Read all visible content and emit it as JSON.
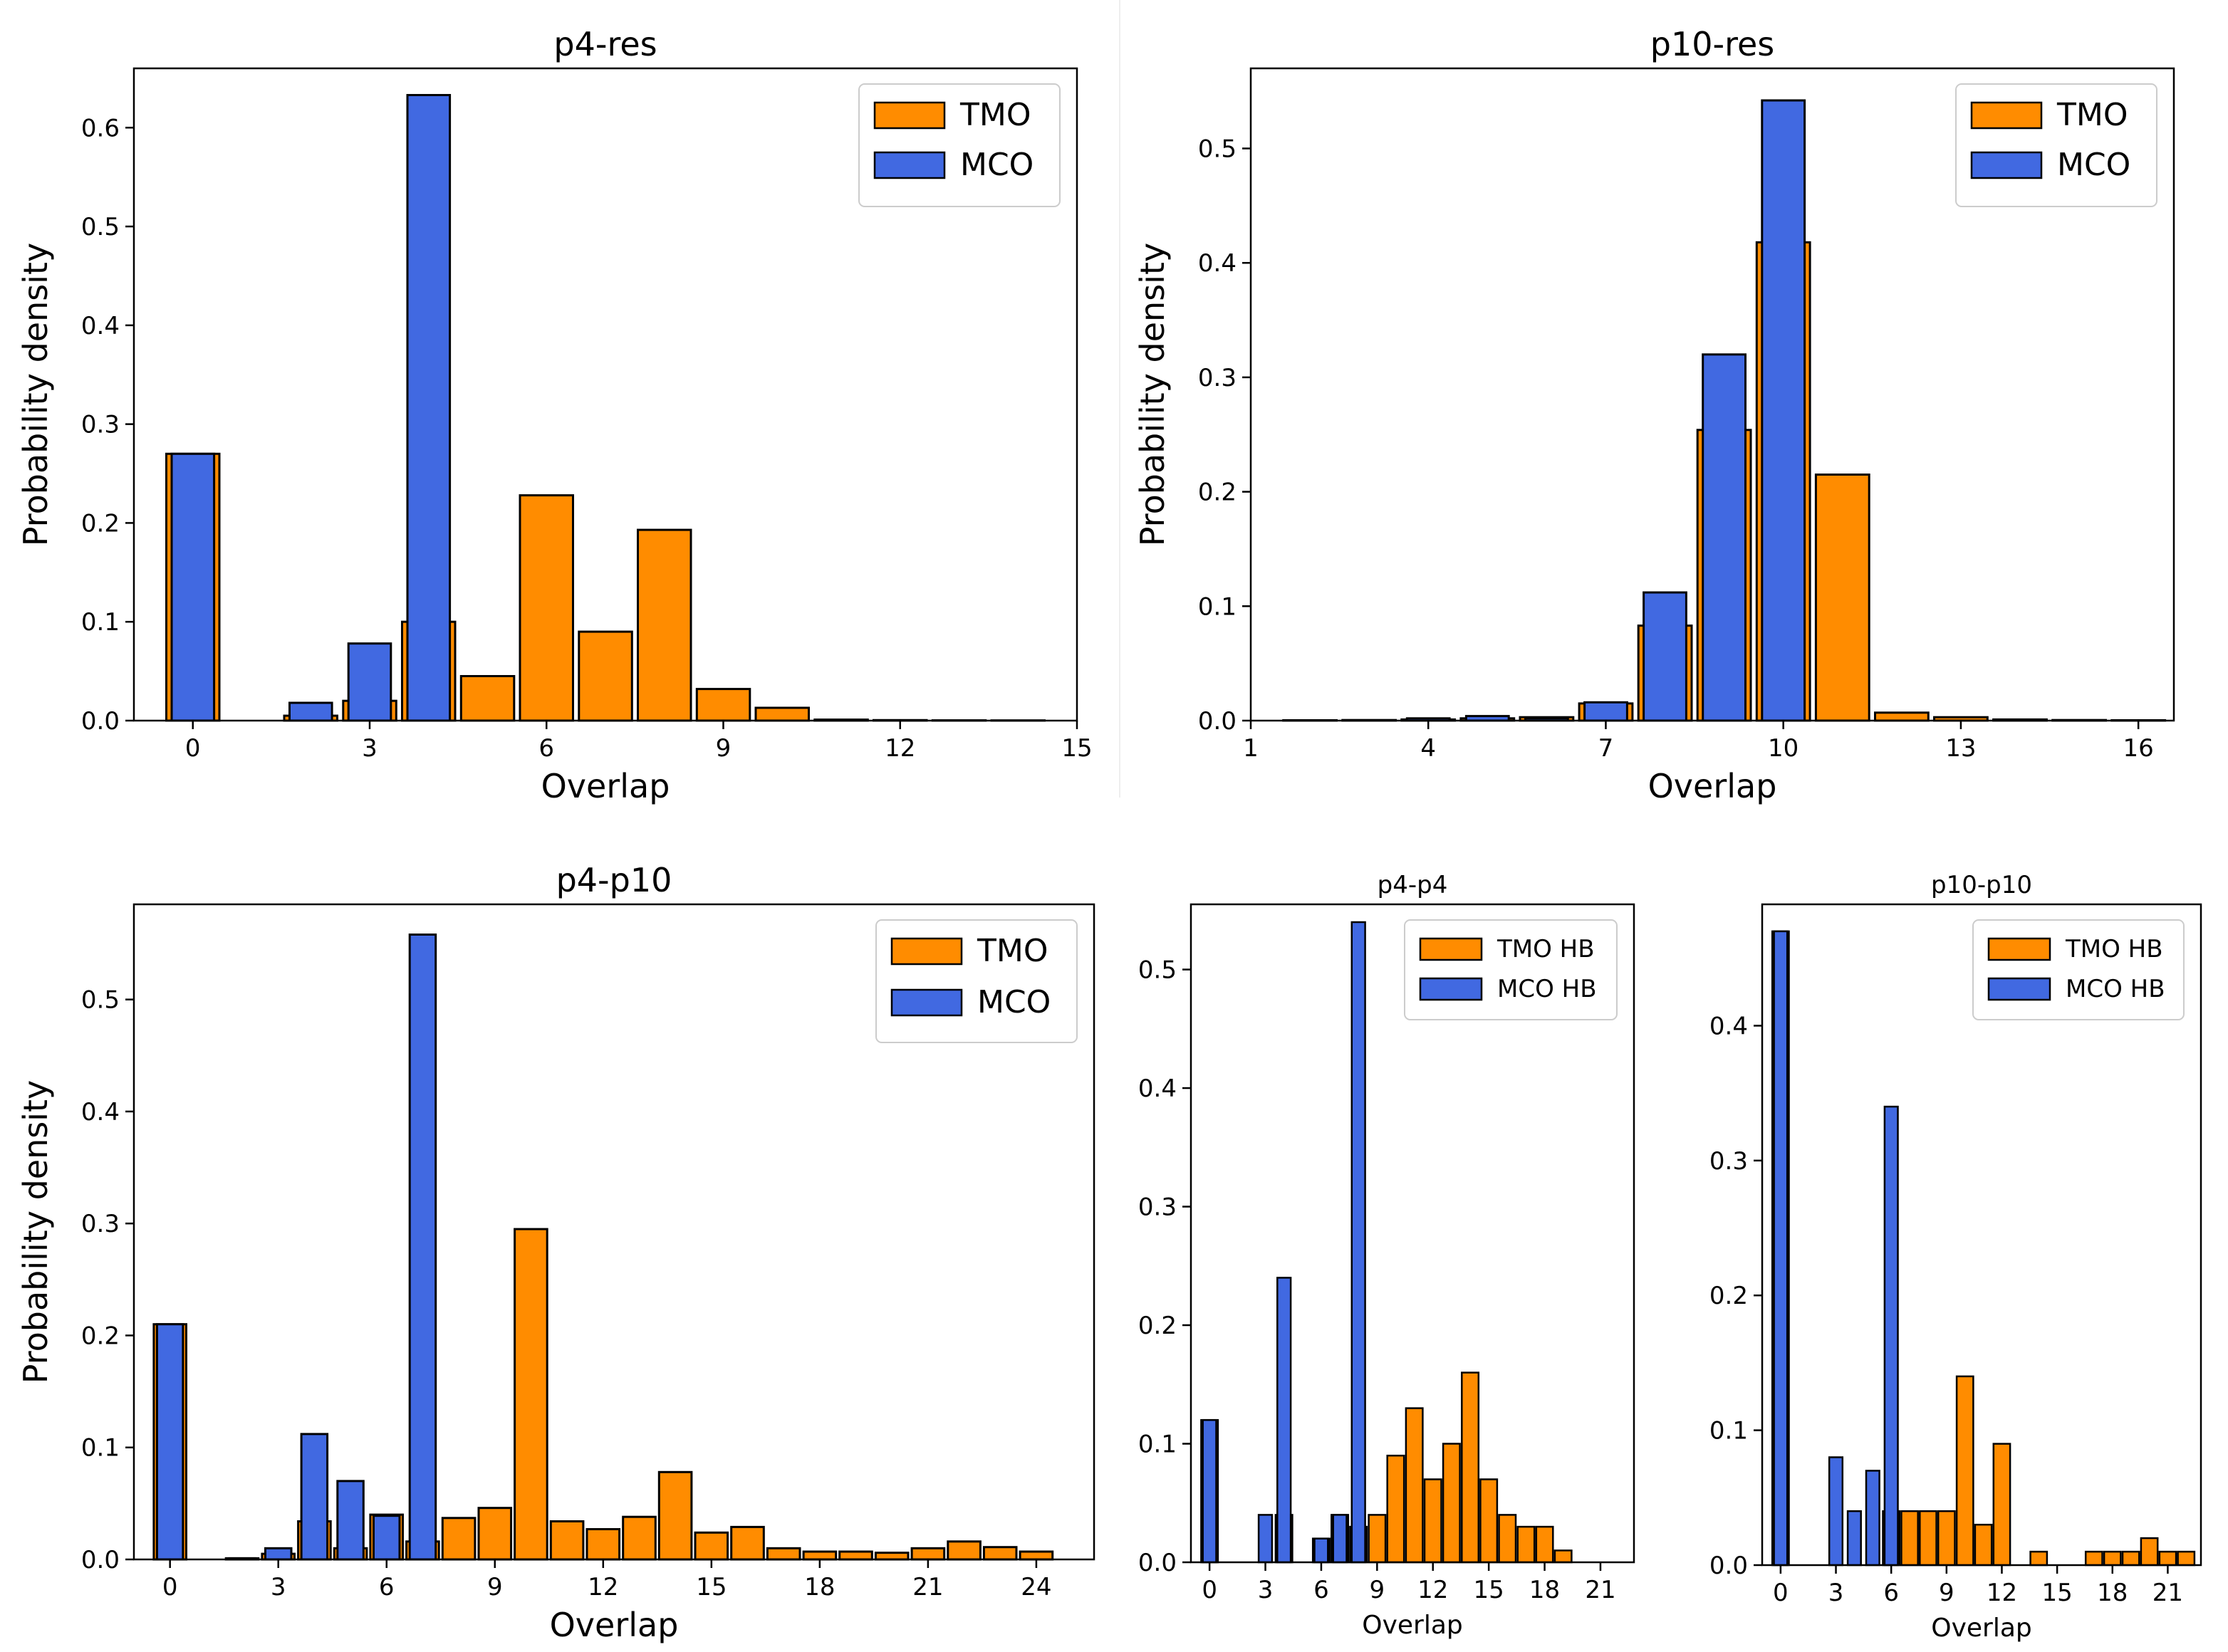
{
  "figure_title": "",
  "colors": {
    "tmo": "#ff8c00",
    "mco": "#4169e1",
    "edge": "#000000",
    "legend_edge": "#cccccc"
  },
  "chart_data": [
    {
      "id": "p4-res",
      "type": "bar",
      "title": "p4-res",
      "xlabel": "Overlap",
      "ylabel": "Probability density",
      "xlim": [
        -1,
        15
      ],
      "ylim": [
        0,
        0.66
      ],
      "xticks": [
        0,
        3,
        6,
        9,
        12,
        15
      ],
      "yticks": [
        0.0,
        0.1,
        0.2,
        0.3,
        0.4,
        0.5,
        0.6
      ],
      "ytick_labels": [
        "0.0",
        "0.1",
        "0.2",
        "0.3",
        "0.4",
        "0.5",
        "0.6"
      ],
      "bar_width": 0.9,
      "legend_position": "top-right",
      "series": [
        {
          "name": "TMO",
          "color": "#ff8c00",
          "x": [
            0,
            1,
            2,
            3,
            4,
            5,
            6,
            7,
            8,
            9,
            10,
            11,
            12,
            13,
            14
          ],
          "values": [
            0.27,
            0.0,
            0.005,
            0.02,
            0.1,
            0.045,
            0.228,
            0.09,
            0.193,
            0.032,
            0.013,
            0.001,
            0.0005,
            0.0003,
            0.0002
          ]
        },
        {
          "name": "MCO",
          "color": "#4169e1",
          "x": [
            0,
            1,
            2,
            3,
            4
          ],
          "values": [
            0.27,
            0.0,
            0.018,
            0.078,
            0.633
          ],
          "width": 0.72
        }
      ]
    },
    {
      "id": "p10-res",
      "type": "bar",
      "title": "p10-res",
      "xlabel": "Overlap",
      "ylabel": "Probability density",
      "xlim": [
        1,
        16.6
      ],
      "ylim": [
        0,
        0.57
      ],
      "xticks": [
        1,
        4,
        7,
        10,
        13,
        16
      ],
      "yticks": [
        0.0,
        0.1,
        0.2,
        0.3,
        0.4,
        0.5
      ],
      "ytick_labels": [
        "0.0",
        "0.1",
        "0.2",
        "0.3",
        "0.4",
        "0.5"
      ],
      "bar_width": 0.9,
      "legend_position": "top-right",
      "series": [
        {
          "name": "TMO",
          "color": "#ff8c00",
          "x": [
            2,
            3,
            4,
            5,
            6,
            7,
            8,
            9,
            10,
            11,
            12,
            13,
            14,
            15,
            16
          ],
          "values": [
            0.0003,
            0.0005,
            0.001,
            0.002,
            0.003,
            0.015,
            0.083,
            0.254,
            0.418,
            0.215,
            0.007,
            0.003,
            0.001,
            0.0005,
            0.0003
          ]
        },
        {
          "name": "MCO",
          "color": "#4169e1",
          "x": [
            4,
            5,
            6,
            7,
            8,
            9,
            10
          ],
          "values": [
            0.002,
            0.004,
            0.002,
            0.016,
            0.112,
            0.32,
            0.542
          ],
          "width": 0.72
        }
      ]
    },
    {
      "id": "p4-p10",
      "type": "bar",
      "title": "p4-p10",
      "xlabel": "Overlap",
      "ylabel": "Probability density",
      "xlim": [
        -1,
        25.6
      ],
      "ylim": [
        0,
        0.585
      ],
      "xticks": [
        0,
        3,
        6,
        9,
        12,
        15,
        18,
        21,
        24
      ],
      "yticks": [
        0.0,
        0.1,
        0.2,
        0.3,
        0.4,
        0.5
      ],
      "ytick_labels": [
        "0.0",
        "0.1",
        "0.2",
        "0.3",
        "0.4",
        "0.5"
      ],
      "bar_width": 0.9,
      "legend_position": "top-right",
      "series": [
        {
          "name": "TMO",
          "color": "#ff8c00",
          "x": [
            0,
            1,
            2,
            3,
            4,
            5,
            6,
            7,
            8,
            9,
            10,
            11,
            12,
            13,
            14,
            15,
            16,
            17,
            18,
            19,
            20,
            21,
            22,
            23,
            24
          ],
          "values": [
            0.21,
            0.0,
            0.001,
            0.005,
            0.034,
            0.01,
            0.04,
            0.016,
            0.037,
            0.046,
            0.295,
            0.034,
            0.027,
            0.038,
            0.078,
            0.024,
            0.029,
            0.01,
            0.007,
            0.007,
            0.006,
            0.01,
            0.016,
            0.011,
            0.007
          ]
        },
        {
          "name": "MCO",
          "color": "#4169e1",
          "x": [
            0,
            1,
            2,
            3,
            4,
            5,
            6,
            7
          ],
          "values": [
            0.21,
            0.0,
            0.001,
            0.01,
            0.112,
            0.07,
            0.039,
            0.558
          ],
          "width": 0.72
        }
      ]
    },
    {
      "id": "p4-p4",
      "type": "bar",
      "title": "p4-p4",
      "xlabel": "Overlap",
      "ylabel": "",
      "xlim": [
        -1,
        22.8
      ],
      "ylim": [
        0,
        0.555
      ],
      "xticks": [
        0,
        3,
        6,
        9,
        12,
        15,
        18,
        21
      ],
      "yticks": [
        0.0,
        0.1,
        0.2,
        0.3,
        0.4,
        0.5
      ],
      "ytick_labels": [
        "0.0",
        "0.1",
        "0.2",
        "0.3",
        "0.4",
        "0.5"
      ],
      "bar_width": 0.9,
      "legend_position": "top-right",
      "series": [
        {
          "name": "TMO HB",
          "color": "#ff8c00",
          "x": [
            0,
            4,
            6,
            7,
            8,
            9,
            10,
            11,
            12,
            13,
            14,
            15,
            16,
            17,
            18,
            19
          ],
          "values": [
            0.12,
            0.04,
            0.02,
            0.04,
            0.03,
            0.04,
            0.09,
            0.13,
            0.07,
            0.1,
            0.16,
            0.07,
            0.04,
            0.03,
            0.03,
            0.01
          ]
        },
        {
          "name": "MCO HB",
          "color": "#4169e1",
          "x": [
            0,
            3,
            4,
            6,
            7,
            8
          ],
          "values": [
            0.12,
            0.04,
            0.24,
            0.02,
            0.04,
            0.54
          ],
          "width": 0.72
        }
      ]
    },
    {
      "id": "p10-p10",
      "type": "bar",
      "title": "p10-p10",
      "xlabel": "Overlap",
      "ylabel": "",
      "xlim": [
        -1,
        22.8
      ],
      "ylim": [
        0,
        0.49
      ],
      "xticks": [
        0,
        3,
        6,
        9,
        12,
        15,
        18,
        21
      ],
      "yticks": [
        0.0,
        0.1,
        0.2,
        0.3,
        0.4
      ],
      "ytick_labels": [
        "0.0",
        "0.1",
        "0.2",
        "0.3",
        "0.4"
      ],
      "bar_width": 0.9,
      "legend_position": "top-right",
      "series": [
        {
          "name": "TMO HB",
          "color": "#ff8c00",
          "x": [
            0,
            6,
            7,
            8,
            9,
            10,
            11,
            12,
            14,
            17,
            18,
            19,
            20,
            21,
            22
          ],
          "values": [
            0.47,
            0.04,
            0.04,
            0.04,
            0.04,
            0.14,
            0.03,
            0.09,
            0.01,
            0.01,
            0.01,
            0.01,
            0.02,
            0.01,
            0.01
          ]
        },
        {
          "name": "MCO HB",
          "color": "#4169e1",
          "x": [
            0,
            3,
            4,
            5,
            6
          ],
          "values": [
            0.47,
            0.08,
            0.04,
            0.07,
            0.34
          ],
          "width": 0.72
        }
      ]
    }
  ]
}
